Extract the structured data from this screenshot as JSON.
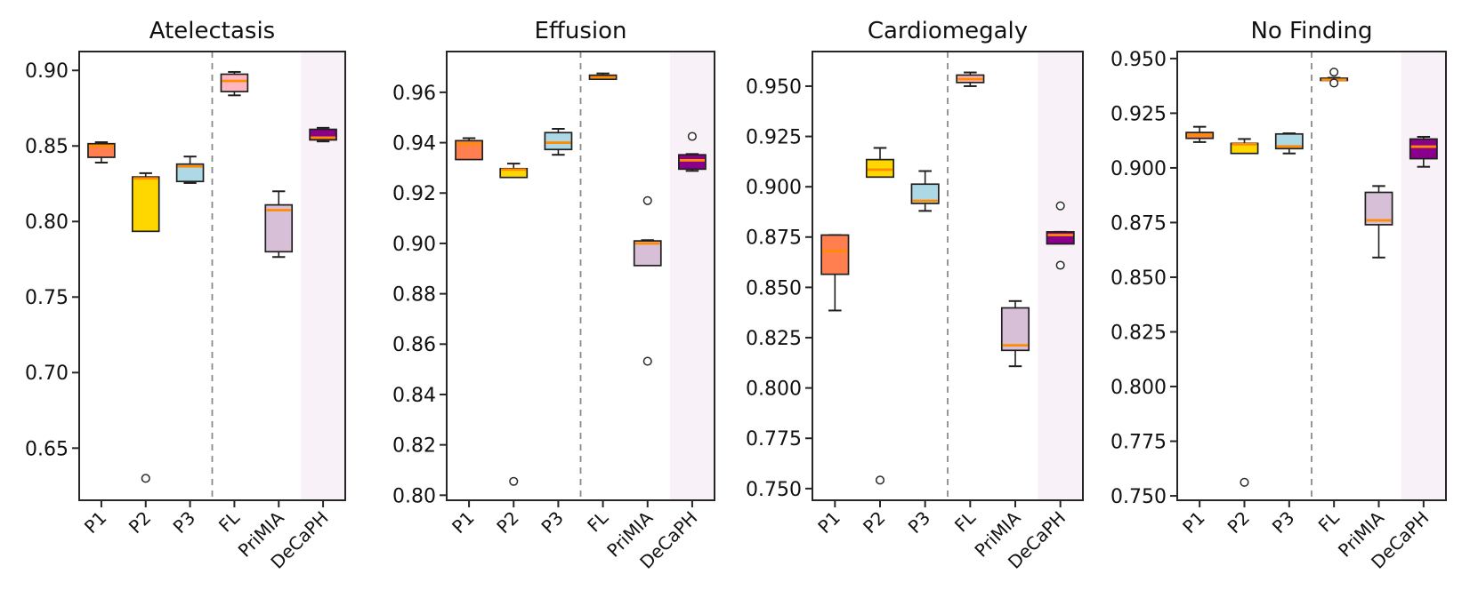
{
  "figure": {
    "categories": [
      "P1",
      "P2",
      "P3",
      "FL",
      "PriMIA",
      "DeCaPH"
    ],
    "styles": {
      "box_colors": [
        "#FF7F50",
        "#FFD700",
        "#ADD8E6",
        "#FFB6C1",
        "#D8BFD8",
        "#8B008B"
      ],
      "median_color": "#FF8C00",
      "edge_color": "#1f1f1f",
      "separator_color": "#8a8a8a",
      "highlight_color": "#F8F1F8",
      "background_color": "#FFFFFF",
      "flier_fill": "#FFFFFF"
    }
  },
  "chart_data": [
    {
      "type": "box",
      "title": "Atelectasis",
      "categories": [
        "P1",
        "P2",
        "P3",
        "FL",
        "PriMIA",
        "DeCaPH"
      ],
      "ylim": [
        0.6155,
        0.9125
      ],
      "yticks": [
        0.65,
        0.7,
        0.75,
        0.8,
        0.85,
        0.9
      ],
      "ytick_decimals": 2,
      "grid": false,
      "separator_after_category": 3,
      "highlight_last_category": true,
      "boxes": [
        {
          "label": "P1",
          "whislo": 0.839,
          "q1": 0.8425,
          "med": 0.85,
          "q3": 0.8515,
          "whishi": 0.8525,
          "fliers": []
        },
        {
          "label": "P2",
          "whislo": 0.7935,
          "q1": 0.7935,
          "med": 0.8285,
          "q3": 0.8295,
          "whishi": 0.832,
          "fliers": [
            0.63
          ]
        },
        {
          "label": "P3",
          "whislo": 0.8255,
          "q1": 0.8265,
          "med": 0.8365,
          "q3": 0.838,
          "whishi": 0.843,
          "fliers": []
        },
        {
          "label": "FL",
          "whislo": 0.8835,
          "q1": 0.886,
          "med": 0.893,
          "q3": 0.8975,
          "whishi": 0.899,
          "fliers": []
        },
        {
          "label": "PriMIA",
          "whislo": 0.7765,
          "q1": 0.78,
          "med": 0.8075,
          "q3": 0.811,
          "whishi": 0.82,
          "fliers": []
        },
        {
          "label": "DeCaPH",
          "whislo": 0.853,
          "q1": 0.854,
          "med": 0.8555,
          "q3": 0.861,
          "whishi": 0.862,
          "fliers": []
        }
      ]
    },
    {
      "type": "box",
      "title": "Effusion",
      "categories": [
        "P1",
        "P2",
        "P3",
        "FL",
        "PriMIA",
        "DeCaPH"
      ],
      "ylim": [
        0.798,
        0.9762
      ],
      "yticks": [
        0.8,
        0.82,
        0.84,
        0.86,
        0.88,
        0.9,
        0.92,
        0.94,
        0.96
      ],
      "ytick_decimals": 2,
      "grid": false,
      "separator_after_category": 3,
      "highlight_last_category": true,
      "boxes": [
        {
          "label": "P1",
          "whislo": 0.933,
          "q1": 0.9333,
          "med": 0.9395,
          "q3": 0.9408,
          "whishi": 0.9418,
          "fliers": []
        },
        {
          "label": "P2",
          "whislo": 0.9262,
          "q1": 0.9262,
          "med": 0.9293,
          "q3": 0.9297,
          "whishi": 0.9317,
          "fliers": [
            0.8055
          ]
        },
        {
          "label": "P3",
          "whislo": 0.9352,
          "q1": 0.9373,
          "med": 0.94,
          "q3": 0.944,
          "whishi": 0.9455,
          "fliers": []
        },
        {
          "label": "FL",
          "whislo": 0.9648,
          "q1": 0.9652,
          "med": 0.966,
          "q3": 0.9668,
          "whishi": 0.9675,
          "fliers": []
        },
        {
          "label": "PriMIA",
          "whislo": 0.8912,
          "q1": 0.8912,
          "med": 0.9,
          "q3": 0.901,
          "whishi": 0.9013,
          "fliers": [
            0.917,
            0.8532
          ]
        },
        {
          "label": "DeCaPH",
          "whislo": 0.9288,
          "q1": 0.9295,
          "med": 0.933,
          "q3": 0.9352,
          "whishi": 0.9355,
          "fliers": [
            0.9425
          ]
        }
      ]
    },
    {
      "type": "box",
      "title": "Cardiomegaly",
      "categories": [
        "P1",
        "P2",
        "P3",
        "FL",
        "PriMIA",
        "DeCaPH"
      ],
      "ylim": [
        0.7442,
        0.9672
      ],
      "yticks": [
        0.75,
        0.775,
        0.8,
        0.825,
        0.85,
        0.875,
        0.9,
        0.925,
        0.95
      ],
      "ytick_decimals": 3,
      "grid": false,
      "separator_after_category": 3,
      "highlight_last_category": true,
      "boxes": [
        {
          "label": "P1",
          "whislo": 0.8385,
          "q1": 0.8565,
          "med": 0.868,
          "q3": 0.876,
          "whishi": 0.876,
          "fliers": []
        },
        {
          "label": "P2",
          "whislo": 0.9048,
          "q1": 0.9048,
          "med": 0.9085,
          "q3": 0.9135,
          "whishi": 0.9193,
          "fliers": [
            0.7542
          ]
        },
        {
          "label": "P3",
          "whislo": 0.888,
          "q1": 0.8917,
          "med": 0.893,
          "q3": 0.9013,
          "whishi": 0.9078,
          "fliers": []
        },
        {
          "label": "FL",
          "whislo": 0.95,
          "q1": 0.9518,
          "med": 0.9535,
          "q3": 0.9555,
          "whishi": 0.9568,
          "fliers": []
        },
        {
          "label": "PriMIA",
          "whislo": 0.8108,
          "q1": 0.8187,
          "med": 0.8212,
          "q3": 0.8398,
          "whishi": 0.8432,
          "fliers": []
        },
        {
          "label": "DeCaPH",
          "whislo": 0.8716,
          "q1": 0.8716,
          "med": 0.876,
          "q3": 0.8776,
          "whishi": 0.8776,
          "fliers": [
            0.8905,
            0.861
          ]
        }
      ]
    },
    {
      "type": "box",
      "title": "No Finding",
      "categories": [
        "P1",
        "P2",
        "P3",
        "FL",
        "PriMIA",
        "DeCaPH"
      ],
      "ylim": [
        0.748,
        0.9532
      ],
      "yticks": [
        0.75,
        0.775,
        0.8,
        0.825,
        0.85,
        0.875,
        0.9,
        0.925,
        0.95
      ],
      "ytick_decimals": 3,
      "grid": false,
      "separator_after_category": 3,
      "highlight_last_category": true,
      "boxes": [
        {
          "label": "P1",
          "whislo": 0.9118,
          "q1": 0.9135,
          "med": 0.915,
          "q3": 0.9162,
          "whishi": 0.9188,
          "fliers": []
        },
        {
          "label": "P2",
          "whislo": 0.9066,
          "q1": 0.9066,
          "med": 0.9108,
          "q3": 0.9112,
          "whishi": 0.9132,
          "fliers": [
            0.7562
          ]
        },
        {
          "label": "P3",
          "whislo": 0.9066,
          "q1": 0.9088,
          "med": 0.9098,
          "q3": 0.9155,
          "whishi": 0.9158,
          "fliers": []
        },
        {
          "label": "FL",
          "whislo": 0.9398,
          "q1": 0.94,
          "med": 0.9403,
          "q3": 0.941,
          "whishi": 0.9412,
          "fliers": [
            0.9438,
            0.9388
          ]
        },
        {
          "label": "PriMIA",
          "whislo": 0.859,
          "q1": 0.874,
          "med": 0.876,
          "q3": 0.8888,
          "whishi": 0.8917,
          "fliers": []
        },
        {
          "label": "DeCaPH",
          "whislo": 0.9005,
          "q1": 0.9042,
          "med": 0.9097,
          "q3": 0.9132,
          "whishi": 0.9142,
          "fliers": []
        }
      ]
    }
  ]
}
